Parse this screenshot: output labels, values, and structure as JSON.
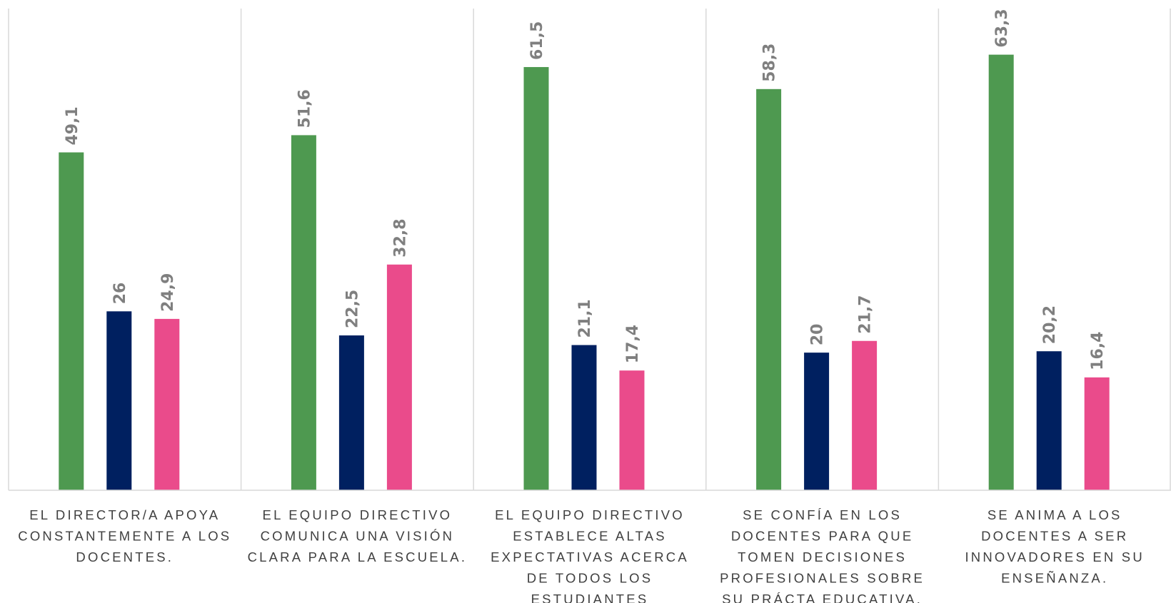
{
  "chart_data": {
    "type": "bar",
    "categories": [
      [
        "EL DIRECTOR/A APOYA",
        "CONSTANTEMENTE A LOS",
        "DOCENTES."
      ],
      [
        "EL EQUIPO DIRECTIVO",
        "COMUNICA UNA VISIÓN",
        "CLARA PARA LA ESCUELA."
      ],
      [
        "EL EQUIPO DIRECTIVO",
        "ESTABLECE ALTAS",
        "EXPECTATIVAS ACERCA",
        "DE TODOS LOS",
        "ESTUDIANTES"
      ],
      [
        "SE CONFÍA EN LOS",
        "DOCENTES PARA QUE",
        "TOMEN DECISIONES",
        "PROFESIONALES SOBRE",
        "SU PRÁCTA EDUCATIVA."
      ],
      [
        "SE ANIMA A LOS",
        "DOCENTES A SER",
        "INNOVADORES EN SU",
        "ENSEÑANZA."
      ]
    ],
    "series": [
      {
        "color": "#4e9950",
        "values": [
          49.1,
          51.6,
          61.5,
          58.3,
          63.3
        ],
        "labels": [
          "49,1",
          "51,6",
          "61,5",
          "58,3",
          "63,3"
        ]
      },
      {
        "color": "#002060",
        "values": [
          26,
          22.5,
          21.1,
          20,
          20.2
        ],
        "labels": [
          "26",
          "22,5",
          "21,1",
          "20",
          "20,2"
        ]
      },
      {
        "color": "#ea4b8b",
        "values": [
          24.9,
          32.8,
          17.4,
          21.7,
          16.4
        ],
        "labels": [
          "24,9",
          "32,8",
          "17,4",
          "21,7",
          "16,4"
        ]
      }
    ],
    "title": "",
    "xlabel": "",
    "ylabel": "",
    "ylim": [
      0,
      70
    ],
    "grid": "vertical-separators",
    "legend": "none",
    "colors": {
      "separator": "#d9d9d9",
      "value_label": "#7f7f7f",
      "category_label": "#404040"
    }
  }
}
